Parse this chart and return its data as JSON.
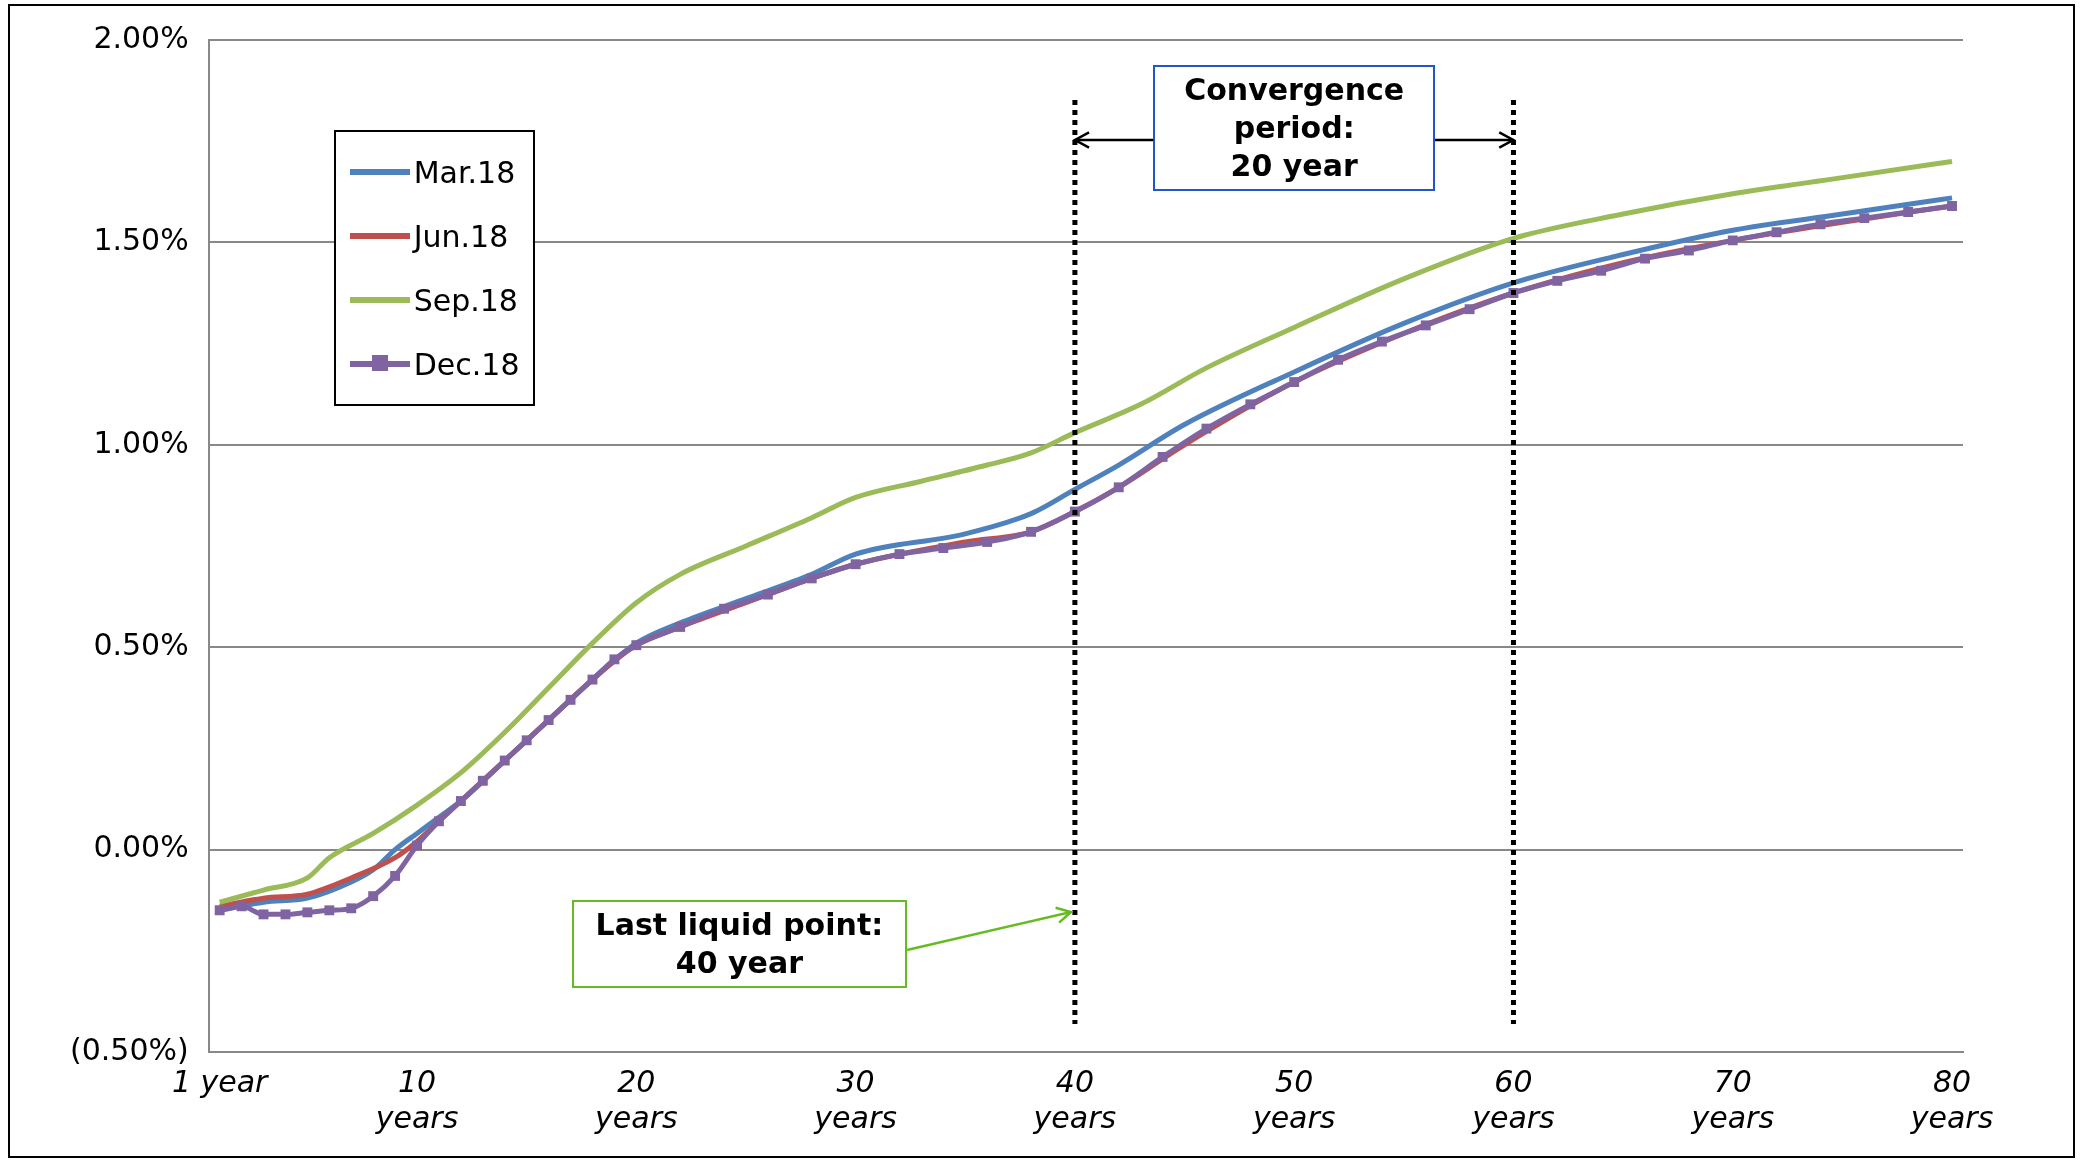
{
  "chart_data": {
    "type": "line",
    "xlim": [
      0.5,
      80.5
    ],
    "xticks": [
      {
        "value": 1,
        "label": "1 year"
      },
      {
        "value": 10,
        "label": "10 years"
      },
      {
        "value": 20,
        "label": "20 years"
      },
      {
        "value": 30,
        "label": "30 years"
      },
      {
        "value": 40,
        "label": "40 years"
      },
      {
        "value": 50,
        "label": "50 years"
      },
      {
        "value": 60,
        "label": "60 years"
      },
      {
        "value": 70,
        "label": "70 years"
      },
      {
        "value": 80,
        "label": "80 years"
      }
    ],
    "ylim": [
      -0.5,
      2.0
    ],
    "yticks": [
      {
        "value": -0.5,
        "label": "(0.50%)"
      },
      {
        "value": 0,
        "label": "0.00%"
      },
      {
        "value": 0.5,
        "label": "0.50%"
      },
      {
        "value": 1.0,
        "label": "1.00%"
      },
      {
        "value": 1.5,
        "label": "1.50%"
      },
      {
        "value": 2.0,
        "label": "2.00%"
      }
    ],
    "grid": "y",
    "legend": "top left",
    "series": [
      {
        "name": "Mar.18",
        "color": "#4f81bd",
        "marker": "none",
        "x": [
          1,
          3,
          5,
          7,
          8,
          9,
          10,
          11,
          12,
          14,
          16,
          18,
          20,
          22,
          25,
          28,
          30,
          35,
          38,
          40,
          42,
          45,
          50,
          55,
          60,
          65,
          70,
          75,
          80
        ],
        "values": [
          -0.15,
          -0.13,
          -0.12,
          -0.08,
          -0.05,
          0.0,
          0.04,
          0.08,
          0.12,
          0.22,
          0.32,
          0.42,
          0.51,
          0.56,
          0.62,
          0.68,
          0.73,
          0.78,
          0.83,
          0.89,
          0.95,
          1.05,
          1.18,
          1.3,
          1.4,
          1.47,
          1.53,
          1.57,
          1.61
        ]
      },
      {
        "name": "Jun.18",
        "color": "#c0504d",
        "marker": "none",
        "x": [
          1,
          3,
          5,
          7,
          9,
          10,
          11,
          12,
          14,
          16,
          18,
          20,
          22,
          25,
          28,
          30,
          35,
          38,
          40,
          42,
          45,
          50,
          55,
          60,
          65,
          70,
          75,
          80
        ],
        "values": [
          -0.14,
          -0.12,
          -0.11,
          -0.07,
          -0.02,
          0.02,
          0.07,
          0.12,
          0.22,
          0.32,
          0.42,
          0.505,
          0.55,
          0.61,
          0.67,
          0.705,
          0.76,
          0.785,
          0.835,
          0.895,
          1.0,
          1.155,
          1.275,
          1.375,
          1.45,
          1.505,
          1.55,
          1.59
        ]
      },
      {
        "name": "Sep.18",
        "color": "#9bbb59",
        "marker": "none",
        "x": [
          1,
          3,
          5,
          6,
          8,
          10,
          12,
          14,
          16,
          18,
          20,
          22,
          25,
          28,
          30,
          33,
          36,
          38,
          40,
          43,
          46,
          50,
          55,
          60,
          65,
          70,
          75,
          80
        ],
        "values": [
          -0.13,
          -0.1,
          -0.07,
          -0.02,
          0.04,
          0.11,
          0.19,
          0.29,
          0.4,
          0.51,
          0.61,
          0.68,
          0.75,
          0.82,
          0.87,
          0.91,
          0.95,
          0.98,
          1.03,
          1.1,
          1.19,
          1.29,
          1.41,
          1.51,
          1.57,
          1.62,
          1.66,
          1.7
        ]
      },
      {
        "name": "Dec.18",
        "color": "#8064a2",
        "marker": "square",
        "x": [
          1,
          2,
          3,
          4,
          5,
          6,
          7,
          8,
          9,
          10,
          11,
          12,
          13,
          14,
          15,
          16,
          17,
          18,
          19,
          20,
          22,
          24,
          26,
          28,
          30,
          32,
          34,
          36,
          38,
          40,
          42,
          44,
          46,
          48,
          50,
          52,
          54,
          56,
          58,
          60,
          62,
          64,
          66,
          68,
          70,
          72,
          74,
          76,
          78,
          80
        ],
        "values": [
          -0.15,
          -0.14,
          -0.16,
          -0.16,
          -0.155,
          -0.15,
          -0.145,
          -0.115,
          -0.065,
          0.01,
          0.07,
          0.12,
          0.17,
          0.22,
          0.27,
          0.32,
          0.37,
          0.42,
          0.47,
          0.505,
          0.55,
          0.595,
          0.63,
          0.67,
          0.705,
          0.73,
          0.745,
          0.76,
          0.785,
          0.835,
          0.895,
          0.97,
          1.04,
          1.1,
          1.155,
          1.21,
          1.255,
          1.295,
          1.335,
          1.375,
          1.405,
          1.43,
          1.46,
          1.48,
          1.505,
          1.525,
          1.545,
          1.56,
          1.575,
          1.59
        ]
      }
    ],
    "ref_lines": [
      {
        "axis": "x",
        "value": 40,
        "color": "#000000",
        "line_style": "dotted"
      },
      {
        "axis": "x",
        "value": 60,
        "color": "#000000",
        "line_style": "dotted"
      }
    ],
    "annotations": [
      "Convergence period: 20 year",
      {
        "text": "Last liquid point: 40 year",
        "x": 40,
        "y": -0.15
      }
    ]
  }
}
